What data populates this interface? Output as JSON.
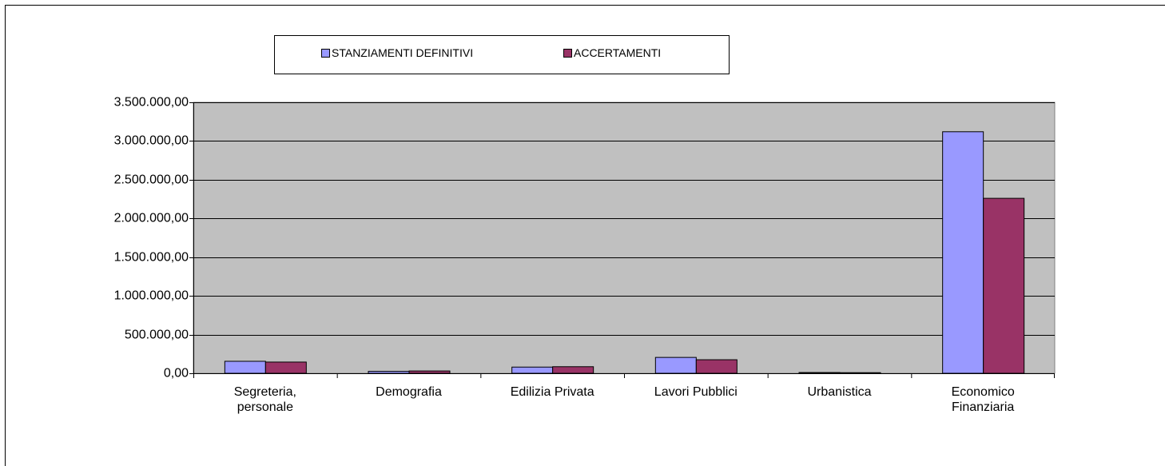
{
  "chart_data": {
    "type": "bar",
    "categories": [
      "Segreteria, personale",
      "Demografia",
      "Edilizia Privata",
      "Lavori Pubblici",
      "Urbanistica",
      "Economico Finanziaria"
    ],
    "series": [
      {
        "name": "STANZIAMENTI DEFINITIVI",
        "color": "#9999ff",
        "values": [
          155000,
          25000,
          80000,
          205000,
          10000,
          3120000
        ]
      },
      {
        "name": "ACCERTAMENTI",
        "color": "#993366",
        "values": [
          145000,
          30000,
          85000,
          175000,
          8000,
          2260000
        ]
      }
    ],
    "ylim": [
      0,
      3500000
    ],
    "yticks": [
      {
        "value": 0,
        "label": "0,00"
      },
      {
        "value": 500000,
        "label": "500.000,00"
      },
      {
        "value": 1000000,
        "label": "1.000.000,00"
      },
      {
        "value": 1500000,
        "label": "1.500.000,00"
      },
      {
        "value": 2000000,
        "label": "2.000.000,00"
      },
      {
        "value": 2500000,
        "label": "2.500.000,00"
      },
      {
        "value": 3000000,
        "label": "3.000.000,00"
      },
      {
        "value": 3500000,
        "label": "3.500.000,00"
      }
    ],
    "grid": true,
    "legend": "top"
  }
}
